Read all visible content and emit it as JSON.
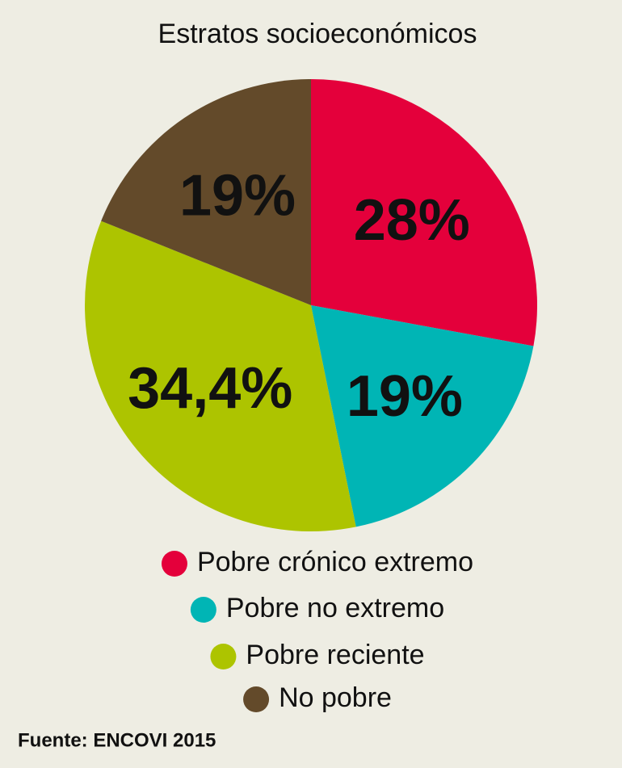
{
  "chart_data": {
    "type": "pie",
    "title": "Estratos socioeconómicos",
    "categories": [
      "Pobre crónico extremo",
      "Pobre no extremo",
      "Pobre reciente",
      "No pobre"
    ],
    "values": [
      28,
      19,
      34.4,
      19
    ],
    "value_labels": [
      "28%",
      "19%",
      "34,4%",
      "19%"
    ],
    "colors": [
      "#e4003b",
      "#00b5b5",
      "#adc400",
      "#634a2a"
    ],
    "source": "Fuente: ENCOVI 2015"
  }
}
